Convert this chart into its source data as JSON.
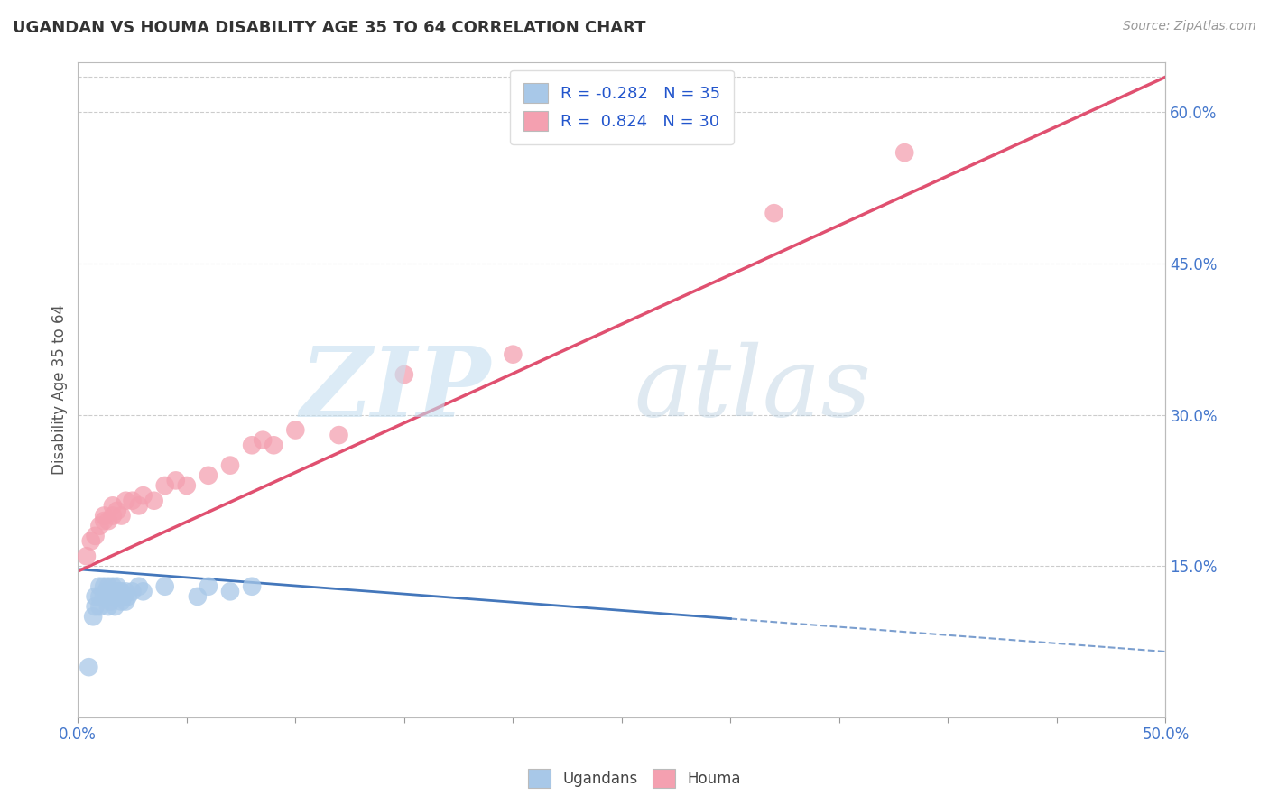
{
  "title": "UGANDAN VS HOUMA DISABILITY AGE 35 TO 64 CORRELATION CHART",
  "source": "Source: ZipAtlas.com",
  "ylabel": "Disability Age 35 to 64",
  "xlim": [
    0.0,
    0.5
  ],
  "ylim": [
    0.0,
    0.65
  ],
  "yticks_right": [
    0.15,
    0.3,
    0.45,
    0.6
  ],
  "ytick_right_labels": [
    "15.0%",
    "30.0%",
    "45.0%",
    "60.0%"
  ],
  "legend_r_ugandan": "-0.282",
  "legend_n_ugandan": "35",
  "legend_r_houma": "0.824",
  "legend_n_houma": "30",
  "ugandan_color": "#a8c8e8",
  "houma_color": "#f4a0b0",
  "ugandan_line_color": "#4477bb",
  "houma_line_color": "#e05070",
  "ugandan_x": [
    0.005,
    0.007,
    0.008,
    0.008,
    0.01,
    0.01,
    0.01,
    0.012,
    0.012,
    0.013,
    0.014,
    0.014,
    0.015,
    0.015,
    0.016,
    0.016,
    0.017,
    0.017,
    0.018,
    0.018,
    0.019,
    0.02,
    0.02,
    0.021,
    0.022,
    0.022,
    0.023,
    0.025,
    0.028,
    0.03,
    0.04,
    0.055,
    0.06,
    0.07,
    0.08
  ],
  "ugandan_y": [
    0.05,
    0.1,
    0.11,
    0.12,
    0.11,
    0.12,
    0.13,
    0.12,
    0.13,
    0.125,
    0.11,
    0.13,
    0.115,
    0.125,
    0.12,
    0.13,
    0.11,
    0.125,
    0.12,
    0.13,
    0.125,
    0.115,
    0.125,
    0.12,
    0.115,
    0.125,
    0.12,
    0.125,
    0.13,
    0.125,
    0.13,
    0.12,
    0.13,
    0.125,
    0.13
  ],
  "houma_x": [
    0.004,
    0.006,
    0.008,
    0.01,
    0.012,
    0.012,
    0.014,
    0.016,
    0.016,
    0.018,
    0.02,
    0.022,
    0.025,
    0.028,
    0.03,
    0.035,
    0.04,
    0.045,
    0.05,
    0.06,
    0.07,
    0.08,
    0.085,
    0.09,
    0.1,
    0.12,
    0.15,
    0.2,
    0.32,
    0.38
  ],
  "houma_y": [
    0.16,
    0.175,
    0.18,
    0.19,
    0.195,
    0.2,
    0.195,
    0.2,
    0.21,
    0.205,
    0.2,
    0.215,
    0.215,
    0.21,
    0.22,
    0.215,
    0.23,
    0.235,
    0.23,
    0.24,
    0.25,
    0.27,
    0.275,
    0.27,
    0.285,
    0.28,
    0.34,
    0.36,
    0.5,
    0.56
  ]
}
